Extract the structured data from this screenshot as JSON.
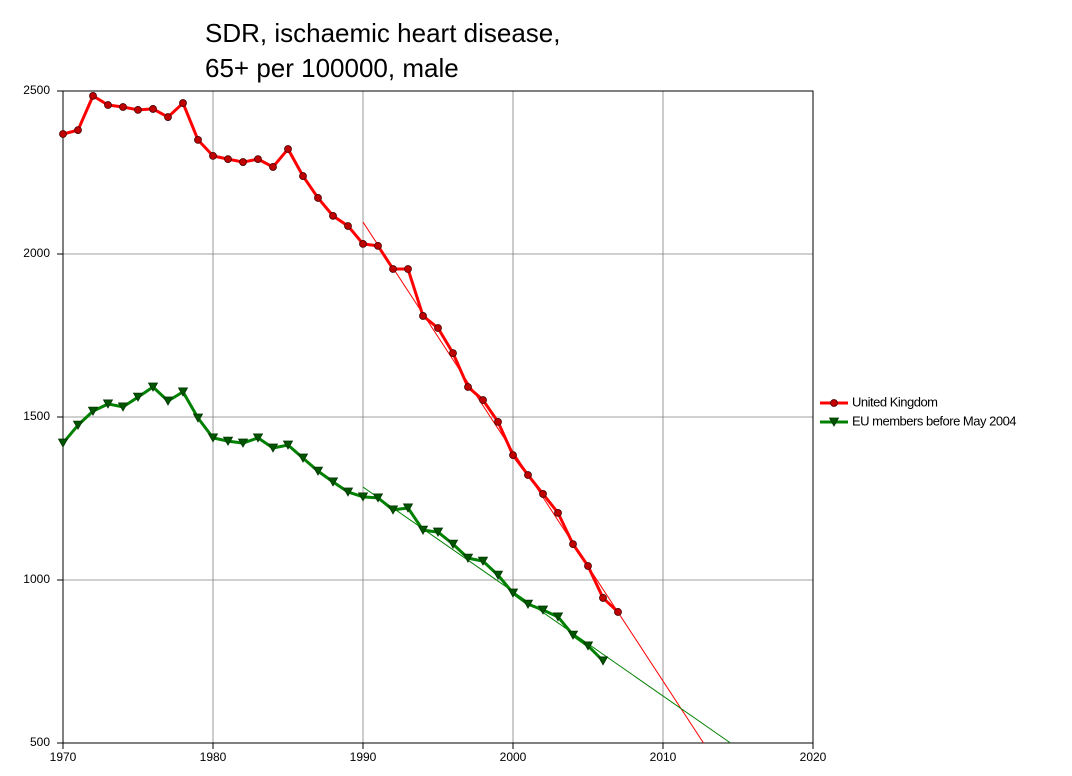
{
  "chart_data": {
    "type": "line",
    "title": [
      "SDR, ischaemic heart disease,",
      "65+ per 100000, male"
    ],
    "xlim": [
      1970,
      2020
    ],
    "xticks": [
      1970,
      1980,
      1990,
      2000,
      2010,
      2020
    ],
    "ylim": [
      500,
      2500
    ],
    "yticks": [
      500,
      1000,
      1500,
      2000,
      2500
    ],
    "grid": true,
    "legend": "right",
    "series": [
      {
        "name": "United Kingdom",
        "color": "#ff0000",
        "marker": "circle",
        "x": [
          1970,
          1971,
          1972,
          1973,
          1974,
          1975,
          1976,
          1977,
          1978,
          1979,
          1980,
          1981,
          1982,
          1983,
          1984,
          1985,
          1986,
          1987,
          1988,
          1989,
          1990,
          1991,
          1992,
          1993,
          1994,
          1995,
          1996,
          1997,
          1998,
          1999,
          2000,
          2001,
          2002,
          2003,
          2004,
          2005,
          2006,
          2007
        ],
        "values": [
          2368,
          2380,
          2485,
          2457,
          2451,
          2442,
          2445,
          2420,
          2463,
          2350,
          2301,
          2291,
          2282,
          2291,
          2267,
          2322,
          2239,
          2172,
          2117,
          2086,
          2031,
          2025,
          1954,
          1954,
          1810,
          1773,
          1696,
          1592,
          1552,
          1485,
          1383,
          1322,
          1264,
          1206,
          1110,
          1043,
          945,
          902
        ],
        "trend": {
          "x": [
            1990,
            2012.7
          ],
          "values": [
            2098,
            500
          ]
        }
      },
      {
        "name": "EU members before May 2004",
        "color": "#008000",
        "marker": "triangle-down",
        "x": [
          1970,
          1971,
          1972,
          1973,
          1974,
          1975,
          1976,
          1977,
          1978,
          1979,
          1980,
          1981,
          1982,
          1983,
          1984,
          1985,
          1986,
          1987,
          1988,
          1989,
          1990,
          1991,
          1992,
          1993,
          1994,
          1995,
          1996,
          1997,
          1998,
          1999,
          2000,
          2001,
          2002,
          2003,
          2004,
          2005,
          2006
        ],
        "values": [
          1420,
          1475,
          1518,
          1540,
          1531,
          1561,
          1592,
          1549,
          1577,
          1497,
          1436,
          1426,
          1420,
          1436,
          1405,
          1414,
          1374,
          1334,
          1301,
          1270,
          1255,
          1252,
          1215,
          1221,
          1153,
          1147,
          1110,
          1067,
          1058,
          1015,
          960,
          926,
          908,
          887,
          831,
          798,
          752
        ],
        "trend": {
          "x": [
            1990,
            2014.5
          ],
          "values": [
            1285,
            500
          ]
        }
      }
    ]
  }
}
